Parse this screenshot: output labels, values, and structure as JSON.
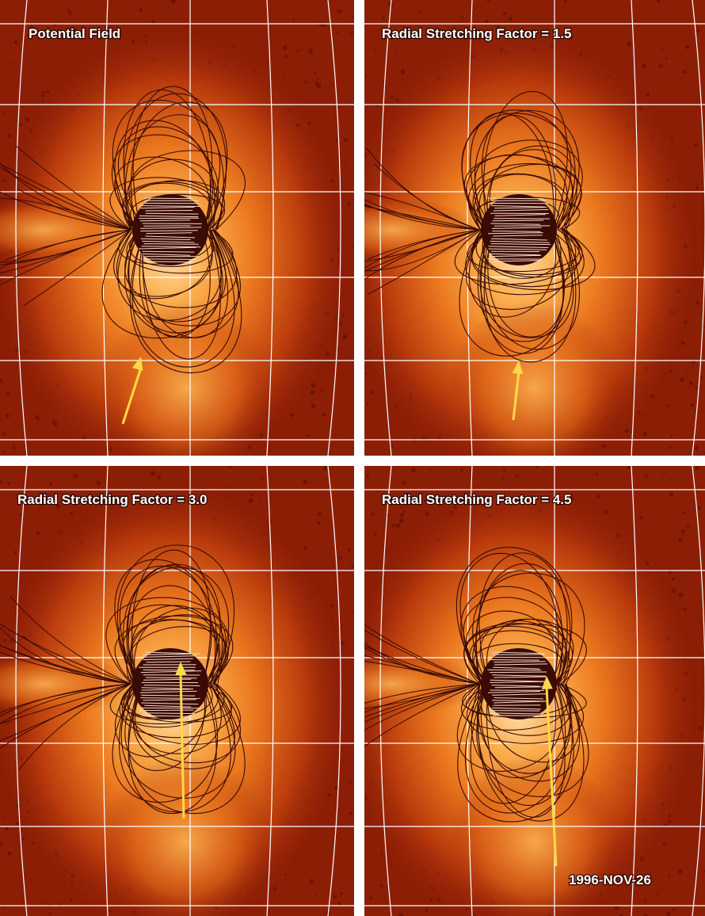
{
  "panels": [
    {
      "label": "Potential Field"
    },
    {
      "label": "Radial Stretching Factor = 1.5"
    },
    {
      "label": "Radial Stretching Factor = 3.0"
    },
    {
      "label": "Radial Stretching Factor = 4.5"
    }
  ],
  "date": "1996-NOV-26"
}
